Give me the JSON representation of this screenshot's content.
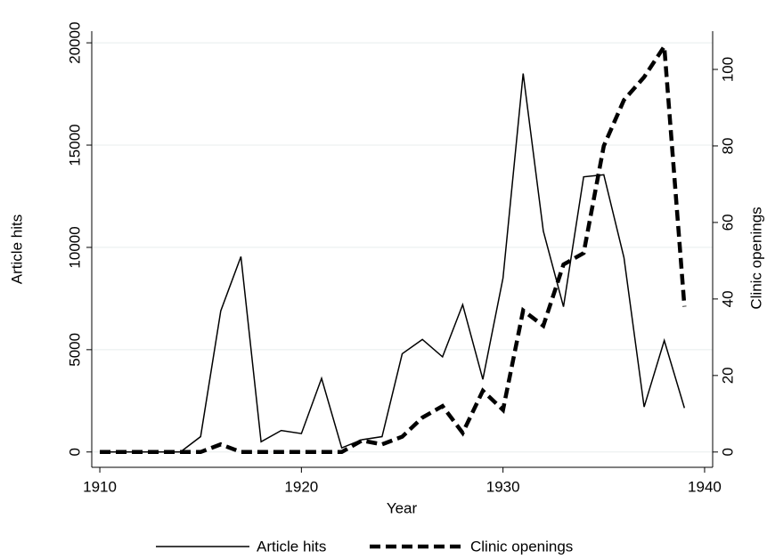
{
  "chart_data": {
    "type": "line",
    "x_label": "Year",
    "y_label": "Article hits",
    "y2_label": "Clinic openings",
    "x": [
      1910,
      1911,
      1912,
      1913,
      1914,
      1915,
      1916,
      1917,
      1918,
      1919,
      1920,
      1921,
      1922,
      1923,
      1924,
      1925,
      1926,
      1927,
      1928,
      1929,
      1930,
      1931,
      1932,
      1933,
      1934,
      1935,
      1936,
      1937,
      1938,
      1939
    ],
    "series": [
      {
        "name": "Article hits",
        "color": "#000000",
        "dash": "solid",
        "values": [
          0,
          0,
          0,
          0,
          0,
          750,
          6900,
          9550,
          500,
          1050,
          900,
          3600,
          200,
          600,
          750,
          4800,
          5500,
          4650,
          7200,
          3550,
          8500,
          18500,
          10800,
          7100,
          13450,
          13550,
          9500,
          2200,
          5450,
          2150
        ]
      },
      {
        "name": "Clinic openings",
        "color": "#000000",
        "dash": "dashed",
        "axis": "y2",
        "values": [
          0,
          0,
          0,
          0,
          0,
          0,
          2,
          0,
          0,
          0,
          0,
          0,
          0,
          3,
          2,
          4,
          9,
          12,
          5,
          16,
          11,
          37,
          33,
          49,
          52,
          80,
          92,
          98,
          106,
          38
        ]
      }
    ],
    "xlim": [
      1909.6,
      1940.4
    ],
    "xticks": [
      1910,
      1920,
      1930,
      1940
    ],
    "ylim": [
      -750,
      20570
    ],
    "yticks": [
      0,
      5000,
      10000,
      15000,
      20000
    ],
    "y2lim": [
      -4,
      110
    ],
    "y2ticks": [
      0,
      20,
      40,
      60,
      80,
      100
    ],
    "grid": true,
    "legend": "bottom"
  }
}
